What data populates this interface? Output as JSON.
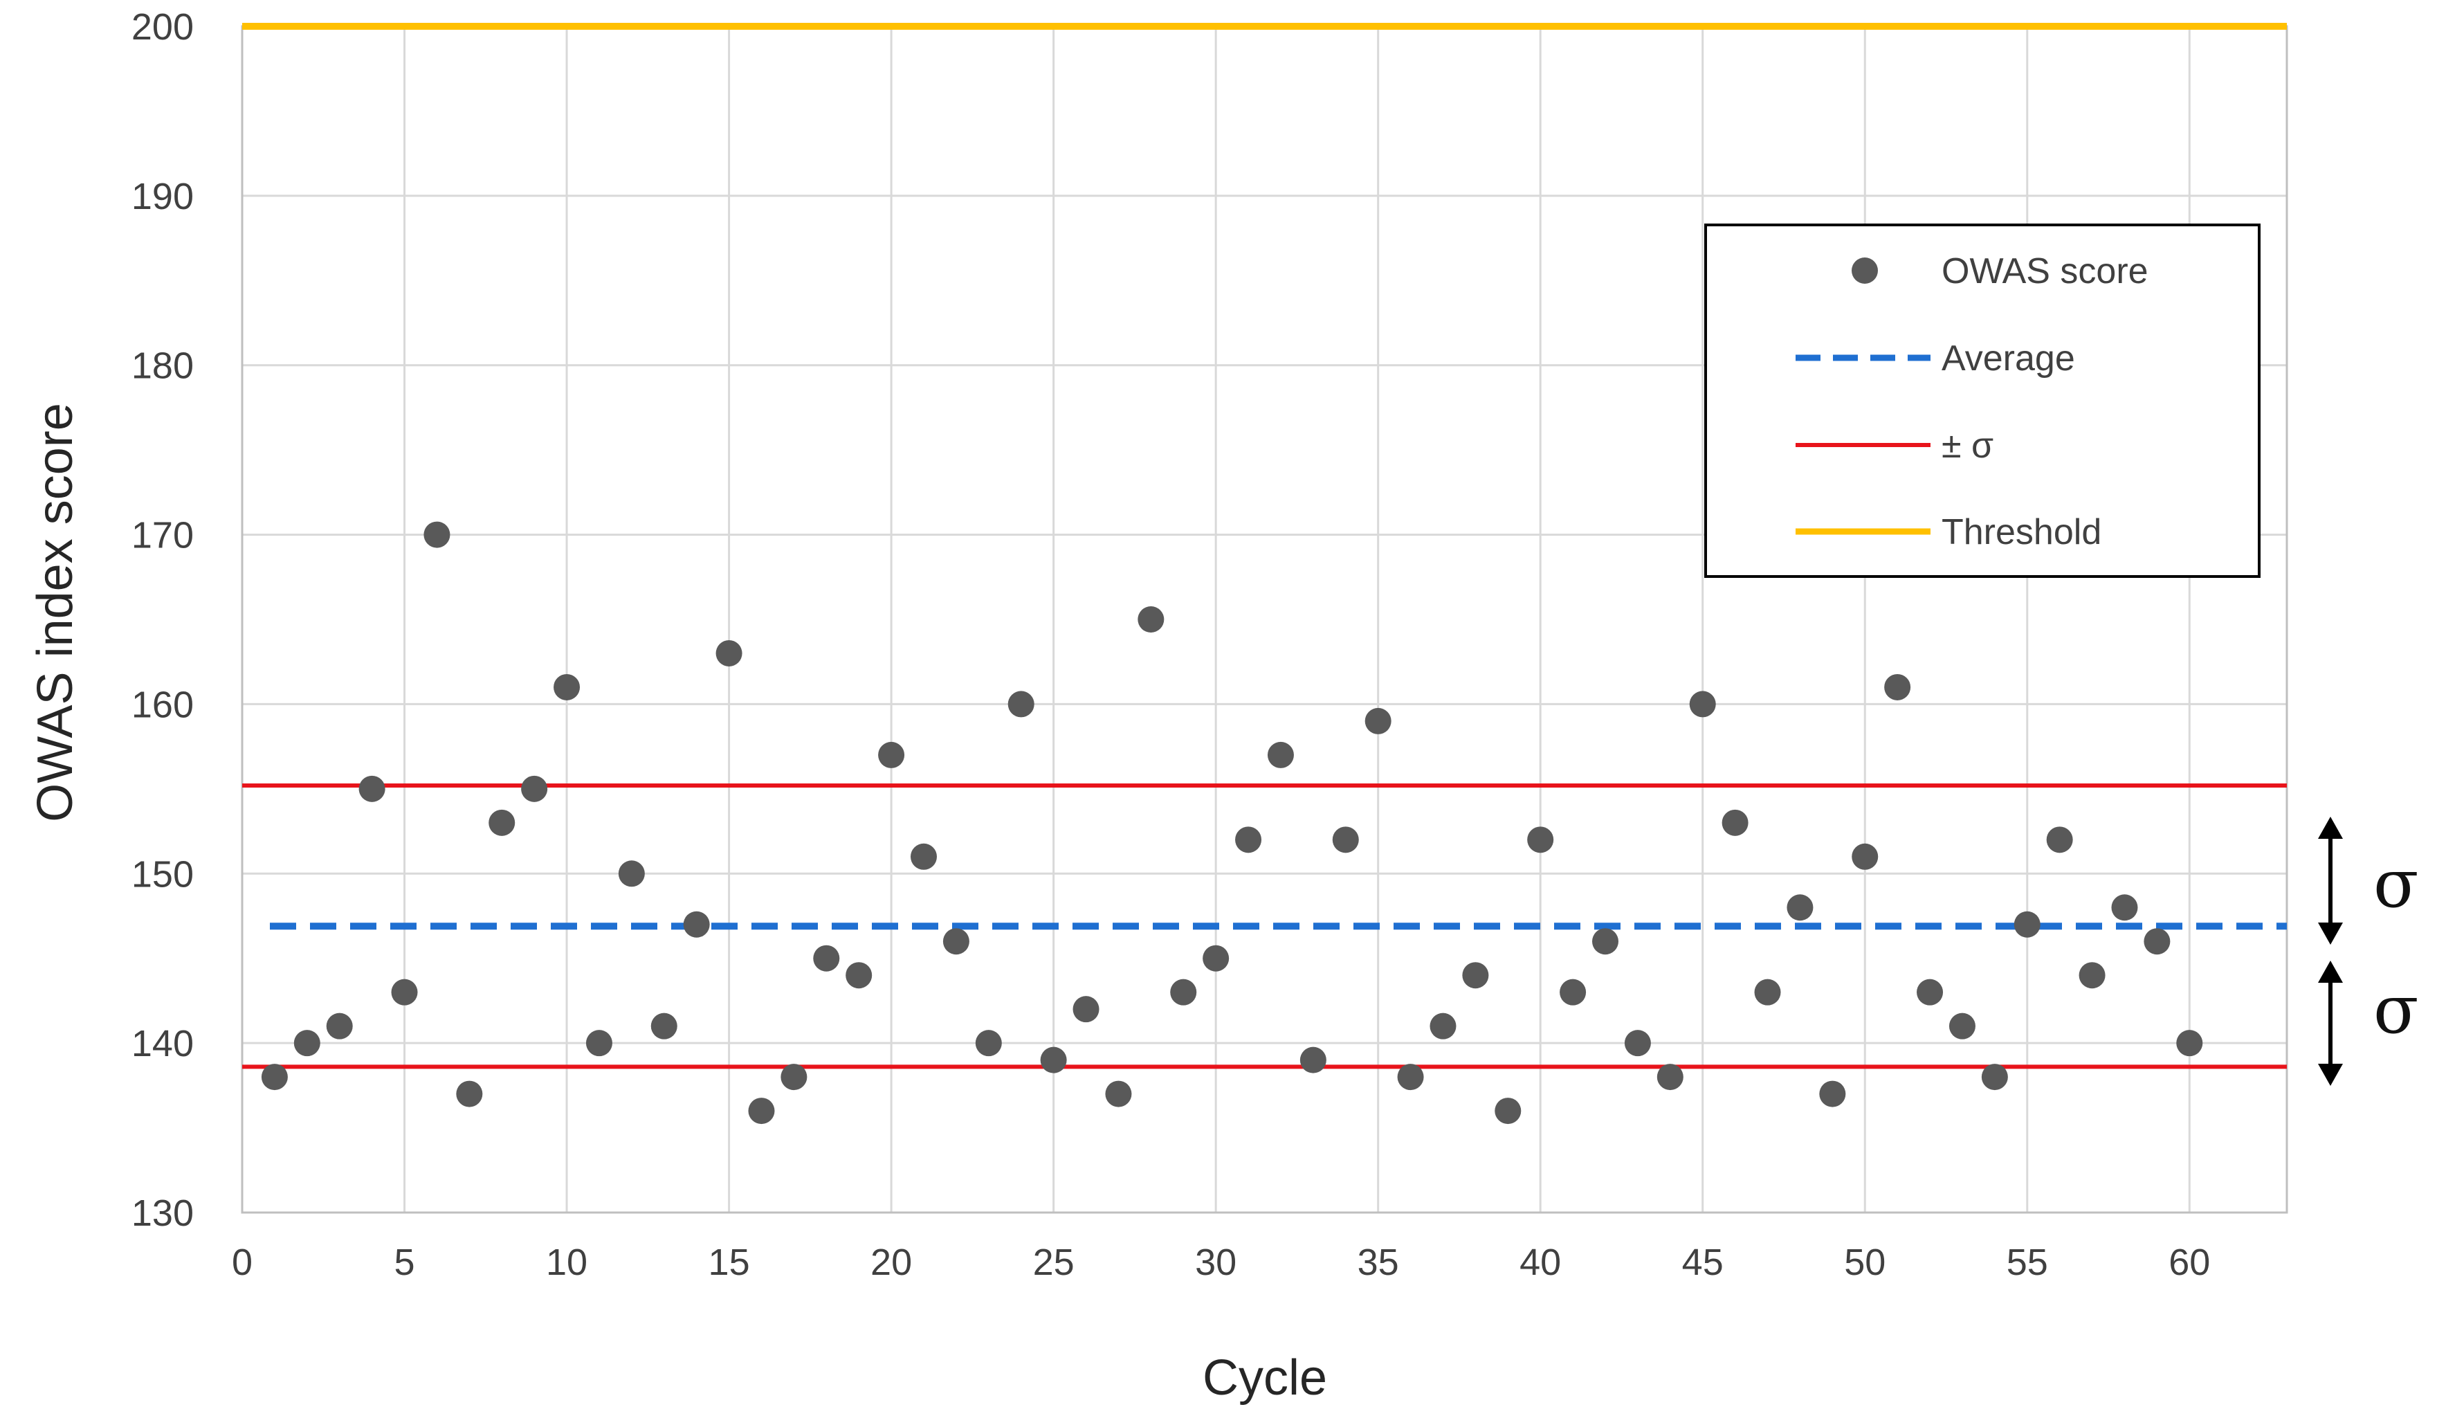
{
  "chart_data": {
    "type": "scatter",
    "title": "",
    "xlabel": "Cycle",
    "ylabel": "OWAS index score",
    "xlim": [
      0,
      63
    ],
    "ylim": [
      130,
      200
    ],
    "grid": true,
    "x_ticks": [
      0,
      5,
      10,
      15,
      20,
      25,
      30,
      35,
      40,
      45,
      50,
      55,
      60
    ],
    "y_ticks": [
      130,
      140,
      150,
      160,
      170,
      180,
      190,
      200
    ],
    "series": [
      {
        "name": "OWAS score",
        "kind": "points",
        "color": "#595959",
        "x": [
          1,
          2,
          3,
          4,
          5,
          6,
          7,
          8,
          9,
          10,
          11,
          12,
          13,
          14,
          15,
          16,
          17,
          18,
          19,
          20,
          21,
          22,
          23,
          24,
          25,
          26,
          27,
          28,
          29,
          30,
          31,
          32,
          33,
          34,
          35,
          36,
          37,
          38,
          39,
          40,
          41,
          42,
          43,
          44,
          45,
          46,
          47,
          48,
          49,
          50,
          51,
          52,
          53,
          54,
          55,
          56,
          57,
          58,
          59,
          60
        ],
        "y": [
          138,
          140,
          141,
          155,
          143,
          170,
          137,
          153,
          155,
          161,
          140,
          150,
          141,
          147,
          163,
          136,
          138,
          145,
          144,
          157,
          151,
          146,
          140,
          160,
          139,
          142,
          137,
          165,
          143,
          145,
          152,
          157,
          139,
          152,
          159,
          138,
          141,
          144,
          136,
          152,
          143,
          146,
          140,
          138,
          160,
          153,
          143,
          148,
          137,
          151,
          161,
          143,
          141,
          138,
          147,
          152,
          144,
          148,
          146,
          140
        ]
      },
      {
        "name": "Average",
        "kind": "hline-dashed",
        "color": "#1f6fd1",
        "value": 146.9
      },
      {
        "name": "± σ",
        "kind": "hline-pair",
        "color": "#e8141b",
        "values": [
          155.2,
          138.6
        ]
      },
      {
        "name": "Threshold",
        "kind": "hline",
        "color": "#ffc000",
        "value": 200
      }
    ],
    "legend": {
      "placement": "top-right",
      "entries": [
        "OWAS score",
        "Average",
        "± σ",
        "Threshold"
      ]
    },
    "annotations": [
      {
        "text": "σ",
        "meaning": "upper standard deviation band"
      },
      {
        "text": "σ",
        "meaning": "lower standard deviation band"
      }
    ]
  }
}
